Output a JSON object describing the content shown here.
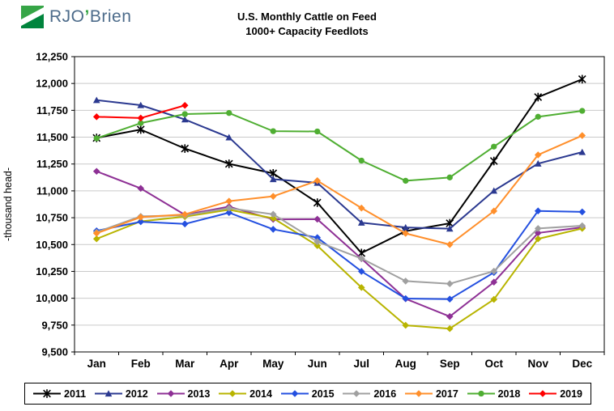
{
  "logo": {
    "prefix": "RJO",
    "apostrophe": "’",
    "suffix": "Brien"
  },
  "title": {
    "line1": "U.S. Monthly Cattle on Feed",
    "line2": "1000+ Capacity Feedlots"
  },
  "chart_data": {
    "type": "line",
    "title": "U.S. Monthly Cattle on Feed 1000+ Capacity Feedlots",
    "xlabel": "",
    "ylabel": "-thousand head-",
    "ylim": [
      9500,
      12250
    ],
    "ytick_step": 250,
    "grid": true,
    "legend_position": "bottom",
    "categories": [
      "Jan",
      "Feb",
      "Mar",
      "Apr",
      "May",
      "Jun",
      "Jul",
      "Aug",
      "Sep",
      "Oct",
      "Nov",
      "Dec"
    ],
    "series": [
      {
        "name": "2011",
        "color": "#000000",
        "marker": "star",
        "values": [
          11493,
          11571,
          11394,
          11252,
          11163,
          10890,
          10421,
          10625,
          10698,
          11278,
          11873,
          12040
        ]
      },
      {
        "name": "2012",
        "color": "#2B3990",
        "marker": "triangle",
        "values": [
          11845,
          11798,
          11665,
          11498,
          11109,
          11075,
          10704,
          10659,
          10648,
          11001,
          11254,
          11361
        ]
      },
      {
        "name": "2013",
        "color": "#8E3095",
        "marker": "diamond",
        "values": [
          11182,
          11023,
          10777,
          10853,
          10735,
          10736,
          10368,
          9995,
          9830,
          10150,
          10608,
          10660
        ]
      },
      {
        "name": "2014",
        "color": "#B8B400",
        "marker": "diamond",
        "values": [
          10553,
          10716,
          10760,
          10824,
          10745,
          10490,
          10100,
          9748,
          9717,
          9989,
          10553,
          10650
        ]
      },
      {
        "name": "2015",
        "color": "#2450E0",
        "marker": "diamond",
        "values": [
          10628,
          10712,
          10692,
          10797,
          10642,
          10565,
          10250,
          9997,
          9992,
          10240,
          10813,
          10804
        ]
      },
      {
        "name": "2016",
        "color": "#A0A0A0",
        "marker": "diamond",
        "values": [
          10615,
          10763,
          10771,
          10839,
          10782,
          10527,
          10370,
          10160,
          10135,
          10252,
          10650,
          10675
        ]
      },
      {
        "name": "2017",
        "color": "#FF8F2B",
        "marker": "diamond",
        "values": [
          10605,
          10755,
          10781,
          10904,
          10949,
          11095,
          10840,
          10604,
          10500,
          10812,
          11335,
          11515
        ]
      },
      {
        "name": "2018",
        "color": "#4FAE32",
        "marker": "circle",
        "values": [
          11489,
          11631,
          11715,
          11725,
          11556,
          11553,
          11282,
          11094,
          11125,
          11412,
          11690,
          11745
        ]
      },
      {
        "name": "2019",
        "color": "#FF0000",
        "marker": "diamond",
        "values": [
          11690,
          11678,
          11796
        ]
      }
    ]
  }
}
